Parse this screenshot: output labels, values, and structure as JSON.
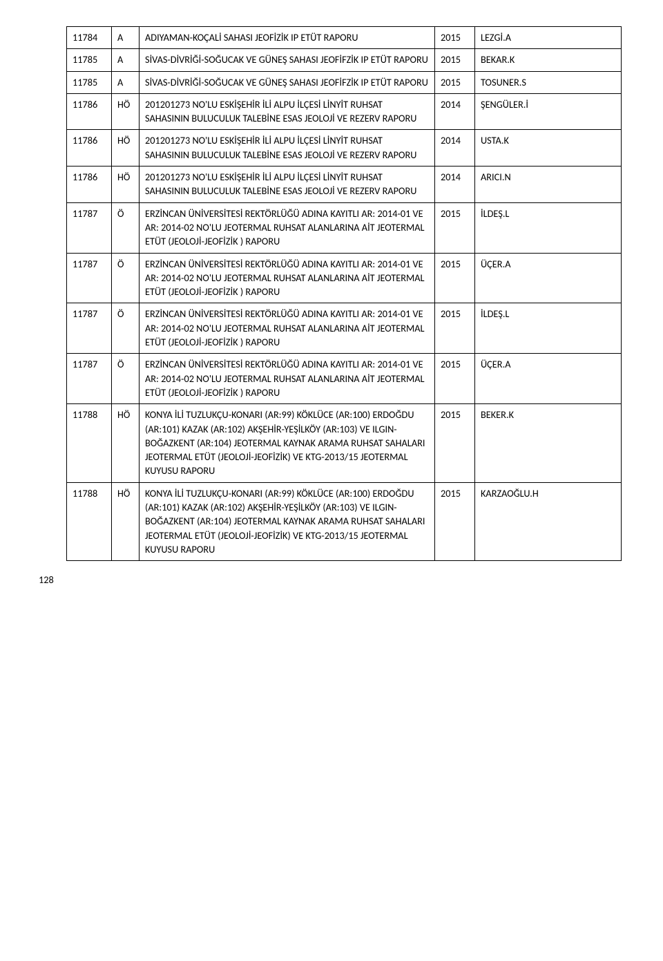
{
  "table": {
    "rows": [
      {
        "c1": "11784",
        "c2": "A",
        "c3": "ADIYAMAN-KOÇALİ SAHASI JEOFİZİK IP ETÜT RAPORU",
        "c4": "2015",
        "c5": "LEZGİ.A"
      },
      {
        "c1": "11785",
        "c2": "A",
        "c3": "SİVAS-DİVRİĞİ-SOĞUCAK  VE GÜNEŞ SAHASI JEOFİFZİK IP ETÜT RAPORU",
        "c4": "2015",
        "c5": "BEKAR.K"
      },
      {
        "c1": "11785",
        "c2": "A",
        "c3": "SİVAS-DİVRİĞİ-SOĞUCAK  VE GÜNEŞ SAHASI JEOFİFZİK IP ETÜT RAPORU",
        "c4": "2015",
        "c5": "TOSUNER.S"
      },
      {
        "c1": "11786",
        "c2": "HÖ",
        "c3": "201201273 NO'LU ESKİŞEHİR İLİ ALPU İLÇESİ LİNYİT RUHSAT SAHASININ BULUCULUK TALEBİNE ESAS JEOLOJİ VE REZERV RAPORU",
        "c4": "2014",
        "c5": "ŞENGÜLER.İ"
      },
      {
        "c1": "11786",
        "c2": "HÖ",
        "c3": "201201273 NO'LU ESKİŞEHİR İLİ ALPU İLÇESİ LİNYİT RUHSAT SAHASININ BULUCULUK TALEBİNE ESAS JEOLOJİ VE REZERV RAPORU",
        "c4": "2014",
        "c5": "USTA.K"
      },
      {
        "c1": "11786",
        "c2": "HÖ",
        "c3": "201201273 NO'LU ESKİŞEHİR İLİ ALPU İLÇESİ LİNYİT RUHSAT SAHASININ BULUCULUK TALEBİNE ESAS JEOLOJİ VE REZERV RAPORU",
        "c4": "2014",
        "c5": "ARICI.N"
      },
      {
        "c1": "11787",
        "c2": "Ö",
        "c3": "ERZİNCAN ÜNİVERSİTESİ REKTÖRLÜĞÜ ADINA KAYITLI AR: 2014-01 VE AR: 2014-02 NO'LU JEOTERMAL RUHSAT ALANLARINA AİT JEOTERMAL ETÜT (JEOLOJİ-JEOFİZİK ) RAPORU",
        "c4": "2015",
        "c5": "İLDEŞ.L"
      },
      {
        "c1": "11787",
        "c2": "Ö",
        "c3": "ERZİNCAN ÜNİVERSİTESİ REKTÖRLÜĞÜ ADINA KAYITLI AR: 2014-01 VE AR: 2014-02 NO'LU JEOTERMAL RUHSAT ALANLARINA AİT JEOTERMAL ETÜT (JEOLOJİ-JEOFİZİK ) RAPORU",
        "c4": "2015",
        "c5": "ÜÇER.A"
      },
      {
        "c1": "11787",
        "c2": "Ö",
        "c3": "ERZİNCAN ÜNİVERSİTESİ REKTÖRLÜĞÜ ADINA KAYITLI AR: 2014-01 VE AR: 2014-02 NO'LU JEOTERMAL RUHSAT ALANLARINA AİT JEOTERMAL ETÜT (JEOLOJİ-JEOFİZİK ) RAPORU",
        "c4": "2015",
        "c5": "İLDEŞ.L"
      },
      {
        "c1": "11787",
        "c2": "Ö",
        "c3": "ERZİNCAN ÜNİVERSİTESİ REKTÖRLÜĞÜ ADINA KAYITLI AR: 2014-01 VE AR: 2014-02 NO'LU JEOTERMAL RUHSAT ALANLARINA AİT JEOTERMAL ETÜT (JEOLOJİ-JEOFİZİK ) RAPORU",
        "c4": "2015",
        "c5": "ÜÇER.A"
      },
      {
        "c1": "11788",
        "c2": "HÖ",
        "c3": "KONYA İLİ TUZLUKÇU-KONARI (AR:99) KÖKLÜCE (AR:100) ERDOĞDU (AR:101) KAZAK (AR:102) AKŞEHİR-YEŞİLKÖY (AR:103) VE ILGIN-BOĞAZKENT (AR:104) JEOTERMAL KAYNAK ARAMA RUHSAT SAHALARI JEOTERMAL ETÜT (JEOLOJİ-JEOFİZİK) VE KTG-2013/15 JEOTERMAL KUYUSU RAPORU",
        "c4": "2015",
        "c5": "BEKER.K"
      },
      {
        "c1": "11788",
        "c2": "HÖ",
        "c3": "KONYA İLİ TUZLUKÇU-KONARI (AR:99) KÖKLÜCE (AR:100) ERDOĞDU (AR:101) KAZAK (AR:102) AKŞEHİR-YEŞİLKÖY (AR:103) VE ILGIN-BOĞAZKENT (AR:104) JEOTERMAL KAYNAK ARAMA RUHSAT SAHALARI JEOTERMAL ETÜT (JEOLOJİ-JEOFİZİK) VE KTG-2013/15 JEOTERMAL KUYUSU RAPORU",
        "c4": "2015",
        "c5": "KARZAOĞLU.H"
      }
    ]
  },
  "pageNumber": "128"
}
